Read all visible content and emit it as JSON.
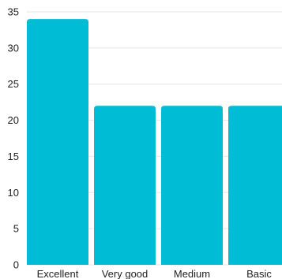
{
  "chart_data": {
    "type": "bar",
    "categories": [
      "Excellent",
      "Very good",
      "Medium",
      "Basic"
    ],
    "values": [
      34,
      22,
      22,
      22
    ],
    "title": "",
    "xlabel": "",
    "ylabel": "",
    "ylim": [
      0,
      35
    ],
    "yticks": [
      0,
      5,
      10,
      15,
      20,
      25,
      30,
      35
    ],
    "grid": true,
    "bar_color": "#00BCD4"
  }
}
